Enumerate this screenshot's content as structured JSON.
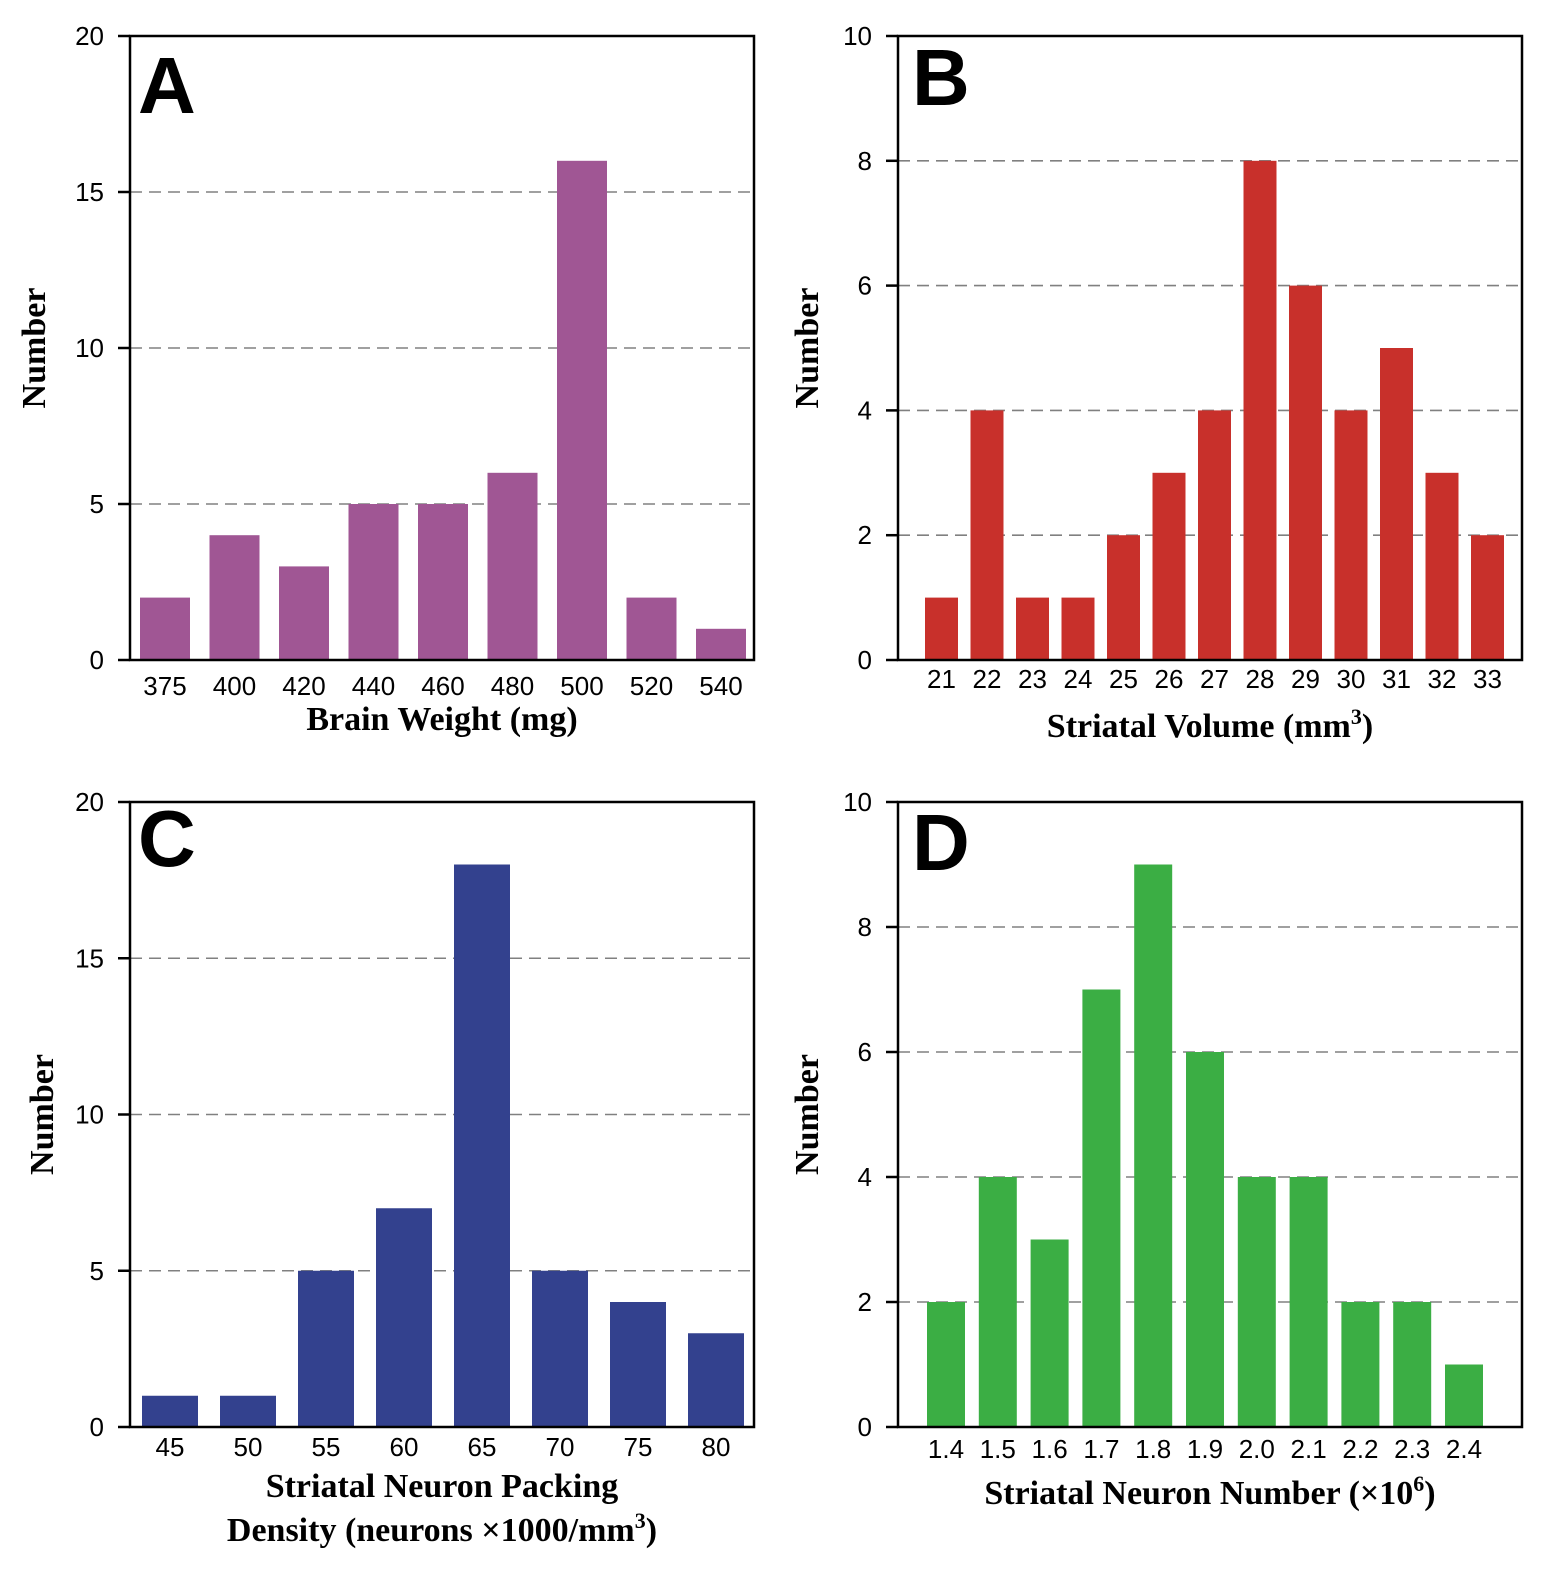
{
  "chart_data": [
    {
      "panel": "A",
      "type": "bar",
      "categories": [
        "375",
        "400",
        "420",
        "440",
        "460",
        "480",
        "500",
        "520",
        "540"
      ],
      "values": [
        2,
        4,
        3,
        5,
        5,
        6,
        16,
        2,
        1
      ],
      "color": "#a05694",
      "xlabel": "Brain Weight (mg)",
      "ylabel": "Number",
      "ylim": [
        0,
        20
      ],
      "yticks": [
        "0",
        "5",
        "10",
        "15",
        "20"
      ],
      "grid": "dashed-horizontal"
    },
    {
      "panel": "B",
      "type": "bar",
      "categories": [
        "21",
        "22",
        "23",
        "24",
        "25",
        "26",
        "27",
        "28",
        "29",
        "30",
        "31",
        "32",
        "33"
      ],
      "values": [
        1,
        4,
        1,
        1,
        2,
        3,
        4,
        8,
        6,
        4,
        5,
        3,
        2
      ],
      "color": "#c8302b",
      "xlabel": "Striatal Volume (mm",
      "xlabel_sup": "3",
      "xlabel_end": ")",
      "ylabel": "Number",
      "ylim": [
        0,
        10
      ],
      "yticks": [
        "0",
        "2",
        "4",
        "6",
        "8",
        "10"
      ],
      "grid": "dashed-horizontal"
    },
    {
      "panel": "C",
      "type": "bar",
      "categories": [
        "45",
        "50",
        "55",
        "60",
        "65",
        "70",
        "75",
        "80"
      ],
      "values": [
        1,
        1,
        5,
        7,
        18,
        5,
        4,
        3
      ],
      "color": "#33418e",
      "xlabel": "Striatal Neuron Packing",
      "xlabel_line2": "Density (neurons ×1000/mm",
      "xlabel_sup": "3",
      "xlabel_end": ")",
      "ylabel": "Number",
      "ylim": [
        0,
        20
      ],
      "yticks": [
        "0",
        "5",
        "10",
        "15",
        "20"
      ],
      "grid": "dashed-horizontal"
    },
    {
      "panel": "D",
      "type": "bar",
      "categories": [
        "1.4",
        "1.5",
        "1.6",
        "1.7",
        "1.8",
        "1.9",
        "2.0",
        "2.1",
        "2.2",
        "2.3",
        "2.4"
      ],
      "values": [
        2,
        4,
        3,
        7,
        9,
        6,
        4,
        4,
        2,
        2,
        1
      ],
      "color": "#3bae44",
      "xlabel": "Striatal Neuron Number (×10",
      "xlabel_sup": "6",
      "xlabel_end": ")",
      "ylabel": "Number",
      "ylim": [
        0,
        10
      ],
      "yticks": [
        "0",
        "2",
        "4",
        "6",
        "8",
        "10"
      ],
      "grid": "dashed-horizontal"
    }
  ]
}
